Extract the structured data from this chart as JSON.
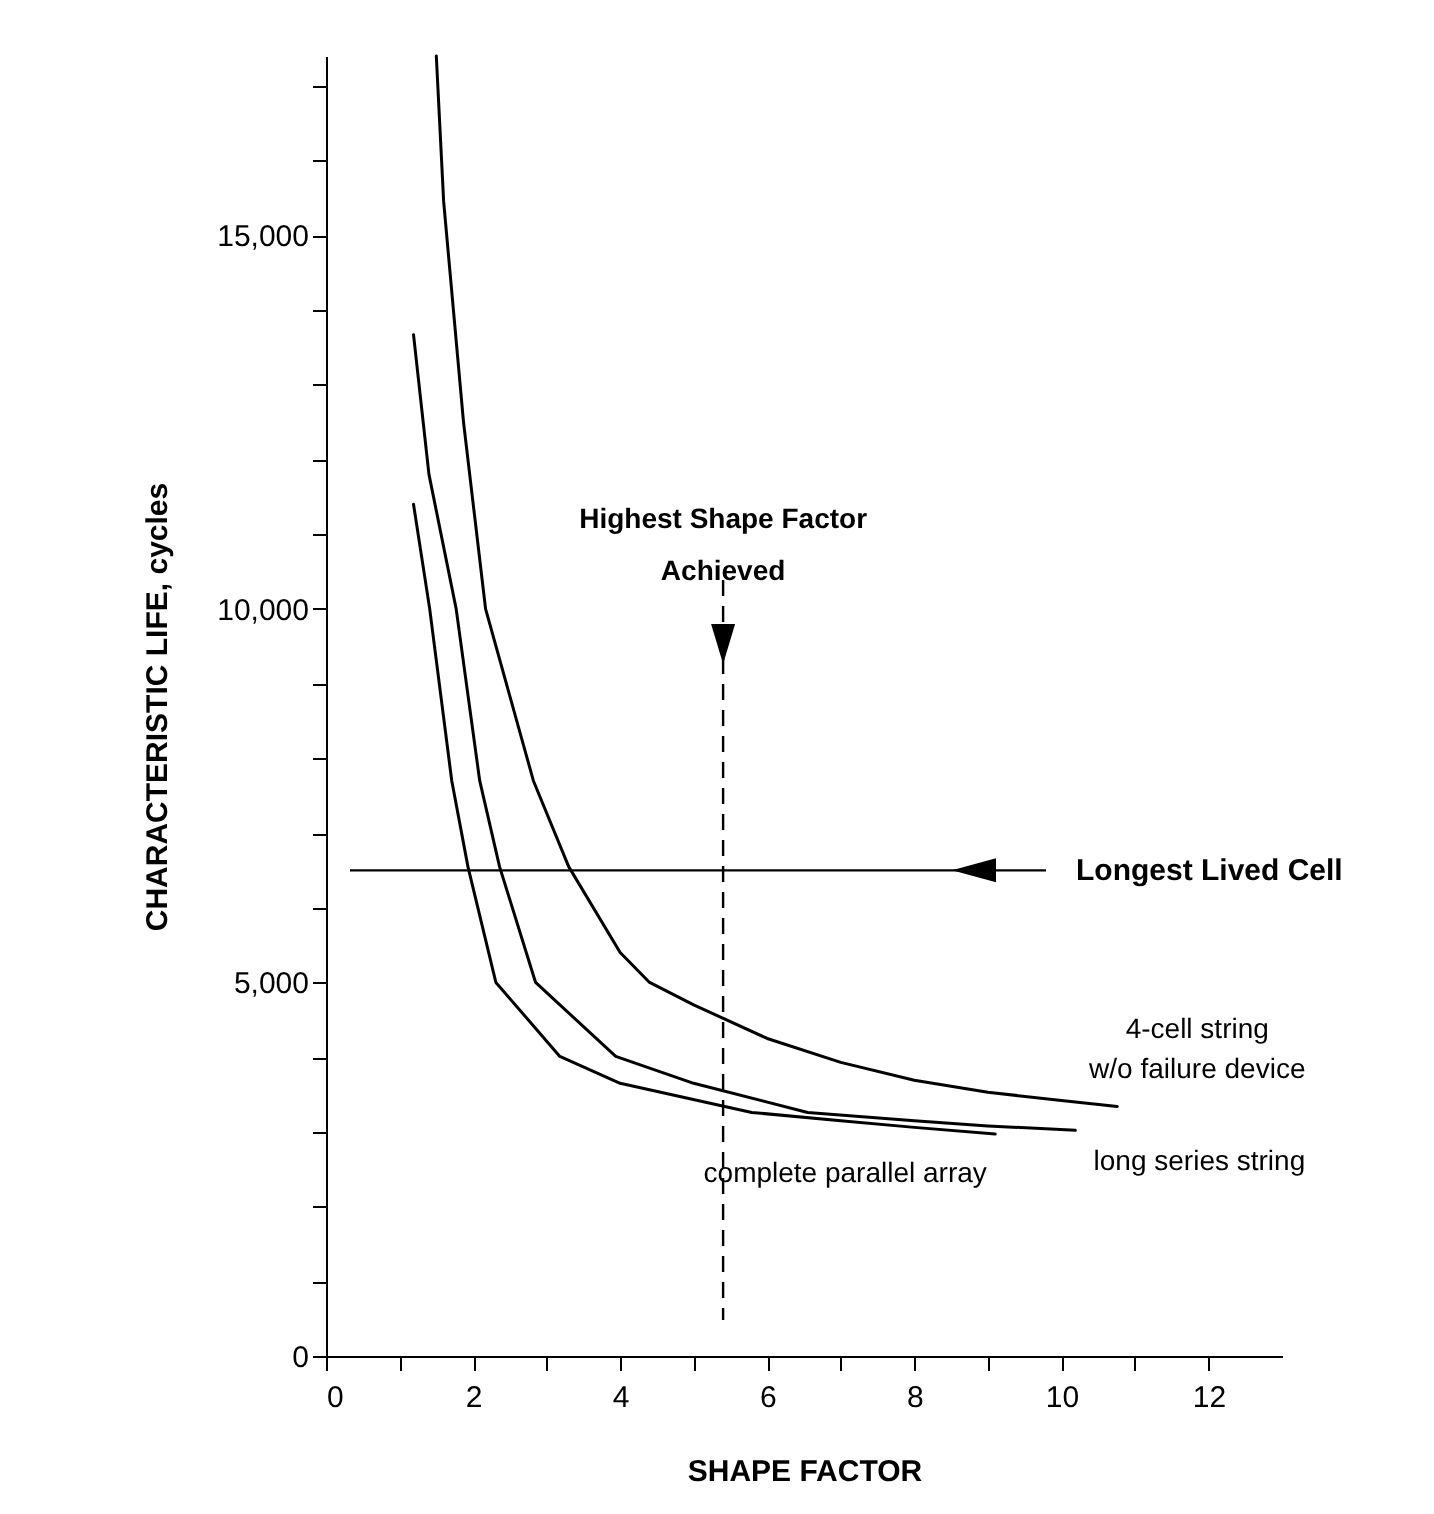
{
  "chart_data": {
    "type": "line",
    "xlabel": "SHAPE FACTOR",
    "ylabel": "CHARACTERISTIC LIFE, cycles",
    "xlim": [
      0,
      13
    ],
    "ylim": [
      0,
      17400
    ],
    "xticks": [
      0,
      {
        "value": 1,
        "label": null
      },
      2,
      {
        "value": 3,
        "label": null
      },
      4,
      {
        "value": 5,
        "label": null
      },
      6,
      {
        "value": 7,
        "label": null
      },
      8,
      {
        "value": 9,
        "label": null
      },
      10,
      {
        "value": 11,
        "label": null
      },
      12
    ],
    "yticks": [
      0,
      {
        "value": 1000,
        "label": null
      },
      {
        "value": 2000,
        "label": null
      },
      {
        "value": 3000,
        "label": null
      },
      {
        "value": 4000,
        "label": null
      },
      {
        "value": 5000,
        "label": "5,000"
      },
      {
        "value": 6000,
        "label": null
      },
      {
        "value": 7000,
        "label": null
      },
      {
        "value": 8000,
        "label": null
      },
      {
        "value": 9000,
        "label": null
      },
      {
        "value": 10000,
        "label": "10,000"
      },
      {
        "value": 11000,
        "label": null
      },
      {
        "value": 12000,
        "label": null
      },
      {
        "value": 13000,
        "label": null
      },
      {
        "value": 14000,
        "label": null
      },
      {
        "value": 15000,
        "label": "15,000"
      },
      {
        "value": 16000,
        "label": null
      },
      {
        "value": 17000,
        "label": null
      }
    ],
    "series": [
      {
        "name": "4-cell string\nw/o failure device",
        "color": "#000000",
        "x": [
          1.5,
          1.6,
          1.87,
          2.17,
          2.82,
          3.3,
          4.0,
          4.4,
          5.0,
          6.0,
          7.0,
          8.0,
          9.0,
          10.0,
          10.76
        ],
        "values": [
          17400,
          15450,
          12500,
          10000,
          7700,
          6550,
          5400,
          5000,
          4700,
          4250,
          3930,
          3690,
          3530,
          3420,
          3340
        ]
      },
      {
        "name": "long series string",
        "color": "#000000",
        "x": [
          1.19,
          1.4,
          1.77,
          2.09,
          2.36,
          2.85,
          3.94,
          5.0,
          6.55,
          8.0,
          9.0,
          10.19
        ],
        "values": [
          13670,
          11800,
          10000,
          7700,
          6550,
          5000,
          4010,
          3650,
          3260,
          3150,
          3080,
          3020
        ]
      },
      {
        "name": "complete parallel array",
        "color": "#000000",
        "x": [
          1.19,
          1.41,
          1.71,
          1.93,
          2.31,
          3.18,
          4.0,
          5.79,
          7.0,
          8.0,
          9.1
        ],
        "values": [
          11400,
          10000,
          7700,
          6550,
          5000,
          4010,
          3650,
          3260,
          3150,
          3060,
          2970
        ]
      }
    ],
    "ref_lines": [
      {
        "axis": "x",
        "value": 5.4,
        "label": "Highest Shape Factor\nAchieved",
        "line_style": "dashed"
      },
      {
        "axis": "y",
        "value": 6500,
        "label": "Longest Lived Cell",
        "line_style": "solid"
      }
    ],
    "grid": false,
    "marker": "none",
    "line_style": "solid"
  }
}
